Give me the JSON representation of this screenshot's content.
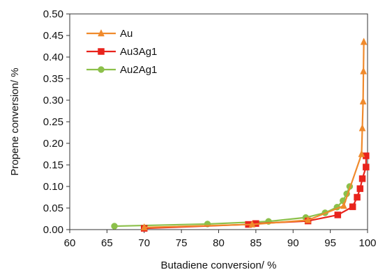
{
  "chart_data": {
    "type": "line",
    "title": "",
    "xlabel": "Butadiene conversion/ %",
    "ylabel": "Propene conversion/ %",
    "xlim": [
      60,
      100
    ],
    "ylim": [
      0,
      0.5
    ],
    "x_ticks": [
      60,
      65,
      70,
      75,
      80,
      85,
      90,
      95,
      100
    ],
    "x_tick_labels": [
      "60",
      "65",
      "70",
      "75",
      "80",
      "85",
      "90",
      "95",
      "100"
    ],
    "y_ticks": [
      0,
      0.05,
      0.1,
      0.15,
      0.2,
      0.25,
      0.3,
      0.35,
      0.4,
      0.45,
      0.5
    ],
    "y_tick_labels": [
      "0.00",
      "0.05",
      "0.10",
      "0.15",
      "0.20",
      "0.25",
      "0.30",
      "0.35",
      "0.40",
      "0.45",
      "0.50"
    ],
    "grid": false,
    "legend_position": "top-left",
    "series": [
      {
        "name": "Au",
        "color": "#f08a2c",
        "marker": "triangle",
        "points": [
          [
            70.0,
            0.005
          ],
          [
            84.5,
            0.012
          ],
          [
            92.0,
            0.022
          ],
          [
            96.8,
            0.055
          ],
          [
            99.2,
            0.175
          ],
          [
            99.3,
            0.235
          ],
          [
            99.4,
            0.297
          ],
          [
            99.45,
            0.367
          ],
          [
            99.5,
            0.435
          ]
        ]
      },
      {
        "name": "Au3Ag1",
        "color": "#e8231c",
        "marker": "square",
        "points": [
          [
            70.0,
            0.003
          ],
          [
            84.0,
            0.012
          ],
          [
            85.0,
            0.014
          ],
          [
            92.0,
            0.02
          ],
          [
            96.0,
            0.034
          ],
          [
            98.0,
            0.053
          ],
          [
            98.6,
            0.075
          ],
          [
            99.0,
            0.095
          ],
          [
            99.3,
            0.118
          ],
          [
            99.8,
            0.145
          ],
          [
            99.8,
            0.171
          ]
        ]
      },
      {
        "name": "Au2Ag1",
        "color": "#8cc04a",
        "marker": "circle",
        "points": [
          [
            66.0,
            0.008
          ],
          [
            78.5,
            0.013
          ],
          [
            86.7,
            0.019
          ],
          [
            91.7,
            0.028
          ],
          [
            94.3,
            0.039
          ],
          [
            95.9,
            0.052
          ],
          [
            96.7,
            0.067
          ],
          [
            97.2,
            0.083
          ],
          [
            97.6,
            0.1
          ]
        ]
      }
    ]
  }
}
